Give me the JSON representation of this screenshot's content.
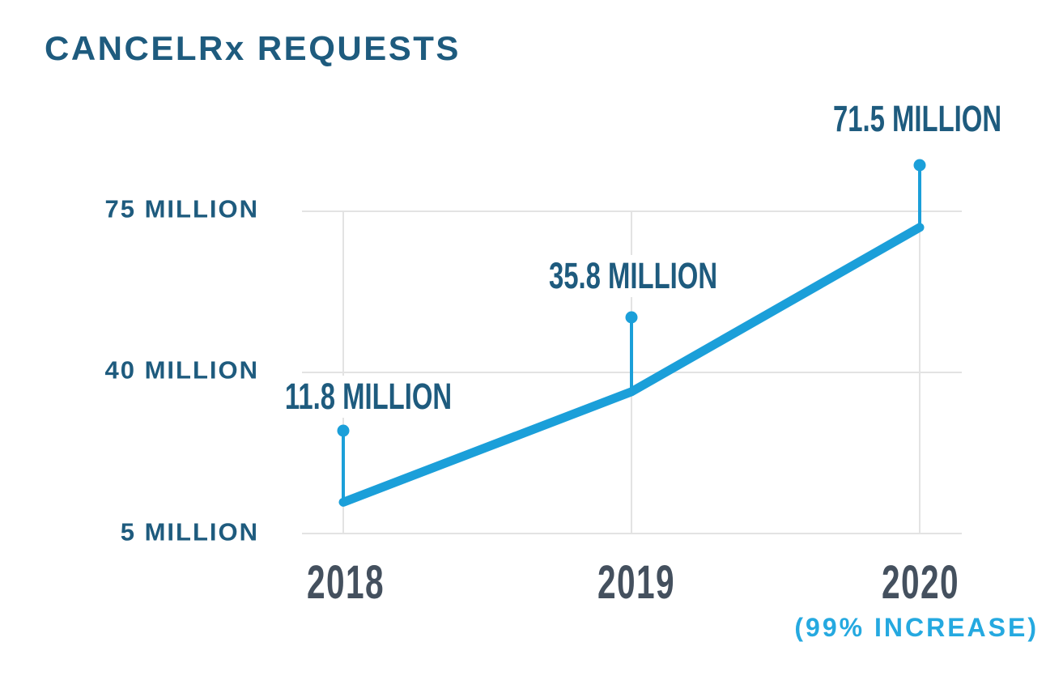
{
  "header": {
    "title": "CANCELRx REQUESTS"
  },
  "colors": {
    "title_dark_blue": "#1e5b7e",
    "axis_label_dark_blue": "#1e5b7e",
    "year_slate": "#44505e",
    "line_blue": "#1b9fd9",
    "increase_text_blue": "#25a9e0",
    "gridline_gray": "#e3e3e3",
    "background": "#ffffff"
  },
  "chart_data": {
    "type": "line",
    "title": "CANCELRx REQUESTS",
    "x": [
      "2018",
      "2019",
      "2020"
    ],
    "series": [
      {
        "name": "CancelRx Requests (millions)",
        "values": [
          11.8,
          35.8,
          71.5
        ]
      }
    ],
    "point_labels": [
      "11.8 MILLION",
      "35.8 MILLION",
      "71.5 MILLION"
    ],
    "ytick_labels": [
      "75 MILLION",
      "40 MILLION",
      "5 MILLION"
    ],
    "ytick_values": [
      75,
      40,
      5
    ],
    "ylim": [
      5,
      75
    ],
    "xlabel": "",
    "ylabel": "",
    "units": "millions",
    "grid": true,
    "legend": false,
    "annotation": "(99% INCREASE)"
  }
}
